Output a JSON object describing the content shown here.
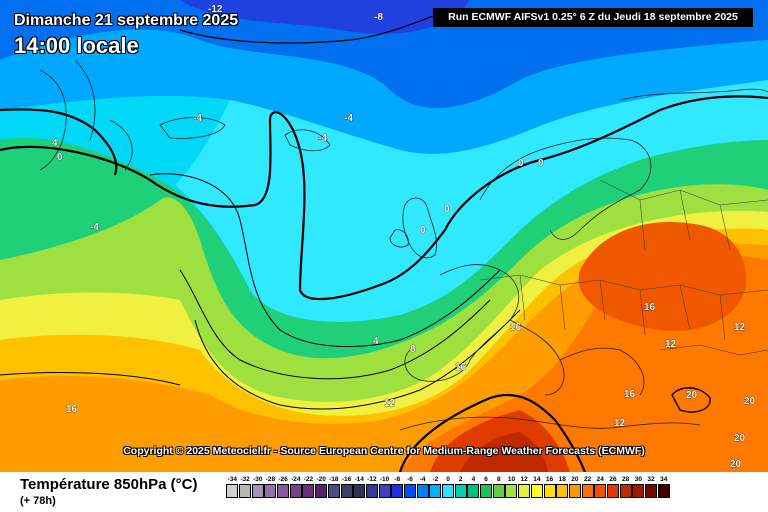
{
  "header": {
    "date": "Dimanche 21 septembre 2025",
    "time": "14:00 locale",
    "run_info": "Run ECMWF AIFSv1 0.25° 6 Z du Jeudi 18 septembre 2025"
  },
  "copyright": "Copyright © 2025 Meteociel.fr - Source European Centre for Medium-Range Weather Forecasts (ECMWF)",
  "footer": {
    "variable": "Température 850hPa (°C)",
    "lead": "(+ 78h)"
  },
  "legend": {
    "ticks": [
      "-34",
      "-32",
      "-30",
      "-28",
      "-26",
      "-24",
      "-22",
      "-20",
      "-18",
      "-16",
      "-14",
      "-12",
      "-10",
      "-8",
      "-6",
      "-4",
      "-2",
      "0",
      "2",
      "4",
      "6",
      "8",
      "10",
      "12",
      "14",
      "16",
      "18",
      "20",
      "22",
      "24",
      "26",
      "28",
      "30",
      "32",
      "34"
    ],
    "colors": [
      "#d0d0d0",
      "#b8b8b8",
      "#a890b8",
      "#9870a8",
      "#885898",
      "#784088",
      "#683078",
      "#582068",
      "#485080",
      "#384068",
      "#303058",
      "#383890",
      "#4040c0",
      "#2030e0",
      "#0050ff",
      "#0080ff",
      "#00b0ff",
      "#30e0ff",
      "#00d0b0",
      "#00c080",
      "#20c060",
      "#60d040",
      "#a0e040",
      "#e0f040",
      "#ffff20",
      "#ffe000",
      "#ffc000",
      "#ff9800",
      "#ff7000",
      "#f05000",
      "#e03800",
      "#c02800",
      "#a01800",
      "#700808",
      "#400000"
    ]
  },
  "map": {
    "labels": [
      {
        "text": "-12"
      },
      {
        "text": "-8"
      },
      {
        "text": "-4"
      },
      {
        "text": "-4"
      },
      {
        "text": "-4"
      },
      {
        "text": "-4"
      },
      {
        "text": "0"
      },
      {
        "text": "4"
      },
      {
        "text": "0"
      },
      {
        "text": "0"
      },
      {
        "text": "0"
      },
      {
        "text": "0"
      },
      {
        "text": "16"
      },
      {
        "text": "4"
      },
      {
        "text": "8"
      },
      {
        "text": "12"
      },
      {
        "text": "16"
      },
      {
        "text": "16"
      },
      {
        "text": "16"
      },
      {
        "text": "12"
      },
      {
        "text": "12"
      },
      {
        "text": "16"
      },
      {
        "text": "12"
      },
      {
        "text": "20"
      },
      {
        "text": "20"
      },
      {
        "text": "20"
      },
      {
        "text": "20"
      }
    ]
  }
}
